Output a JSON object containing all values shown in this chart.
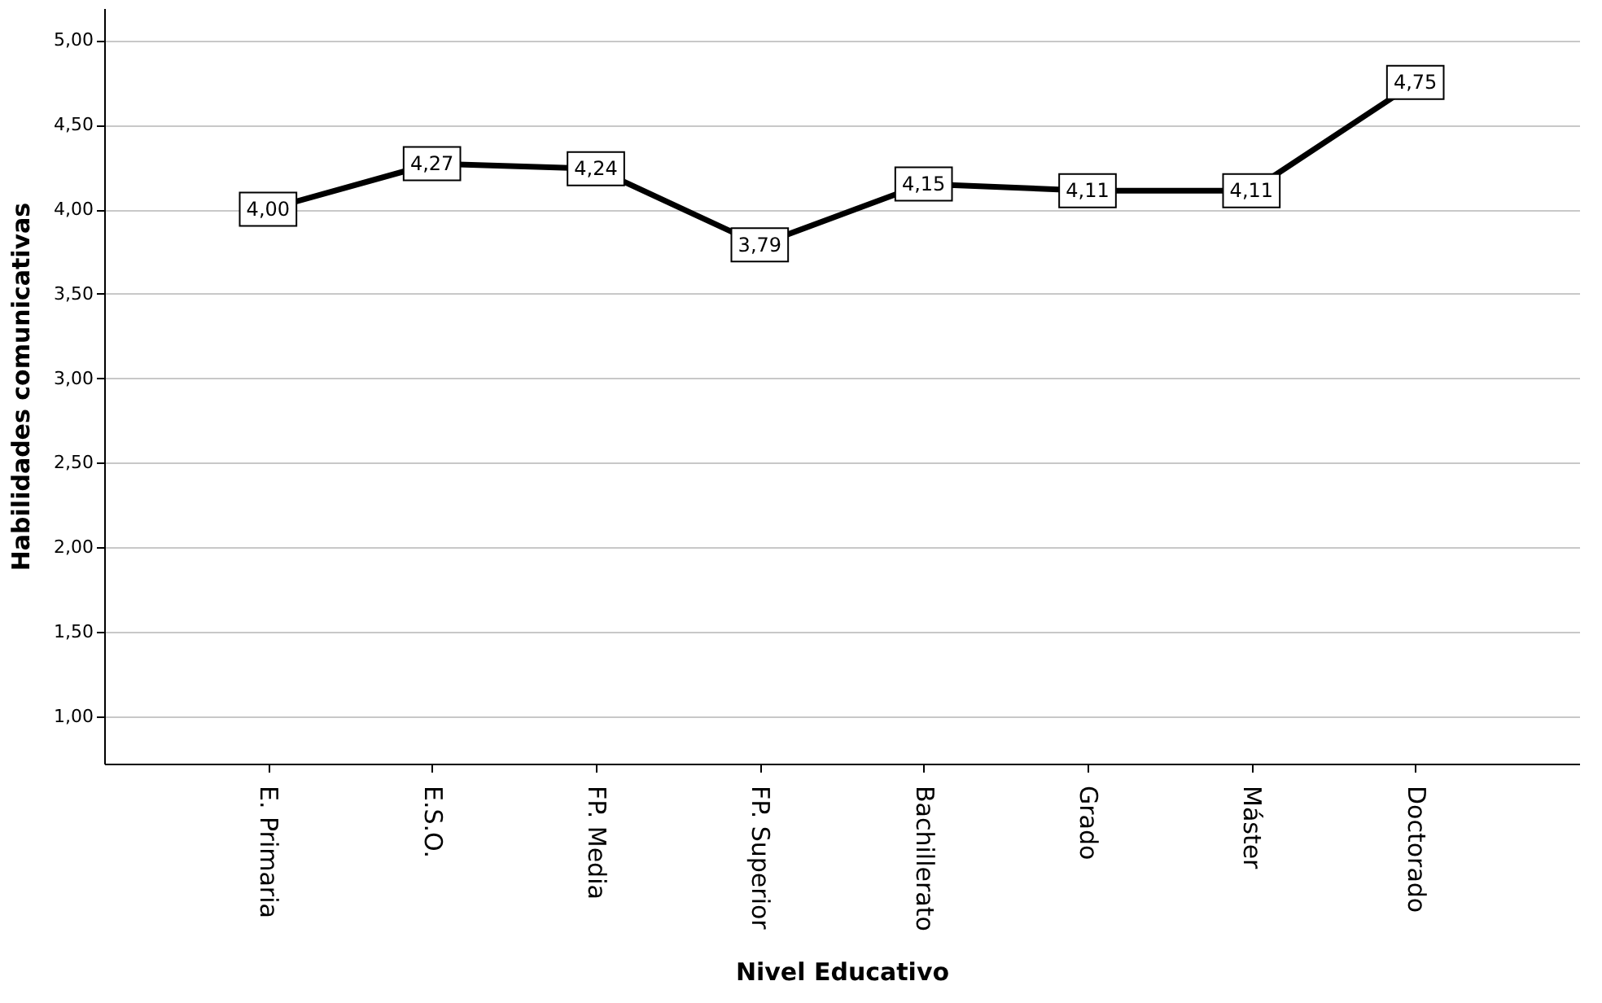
{
  "chart_data": {
    "type": "line",
    "xlabel": "Nivel Educativo",
    "ylabel": "Habilidades comunicativas",
    "categories": [
      "E. Primaria",
      "E.S.O.",
      "FP. Media",
      "FP. Superior",
      "Bachillerato",
      "Grado",
      "Máster",
      "Doctorado"
    ],
    "series": [
      {
        "color": "#000000",
        "values": [
          4.0,
          4.27,
          4.24,
          3.79,
          4.15,
          4.11,
          4.11,
          4.75
        ],
        "value_labels": [
          "4,00",
          "4,27",
          "4,24",
          "3,79",
          "4,15",
          "4,11",
          "4,11",
          "4,75"
        ]
      }
    ],
    "ylim": [
      0.72,
      5.19
    ],
    "yticks": [
      {
        "value": 1,
        "label": "1,00"
      },
      {
        "value": 1.5,
        "label": "1,50"
      },
      {
        "value": 2,
        "label": "2,00"
      },
      {
        "value": 2.5,
        "label": "2,50"
      },
      {
        "value": 3,
        "label": "3,00"
      },
      {
        "value": 3.5,
        "label": "3,50"
      },
      {
        "value": 4,
        "label": "4,00"
      },
      {
        "value": 4.5,
        "label": "4,50"
      },
      {
        "value": 5,
        "label": "5,00"
      }
    ],
    "grid": "y",
    "line_style": "solid",
    "marker": "square"
  }
}
